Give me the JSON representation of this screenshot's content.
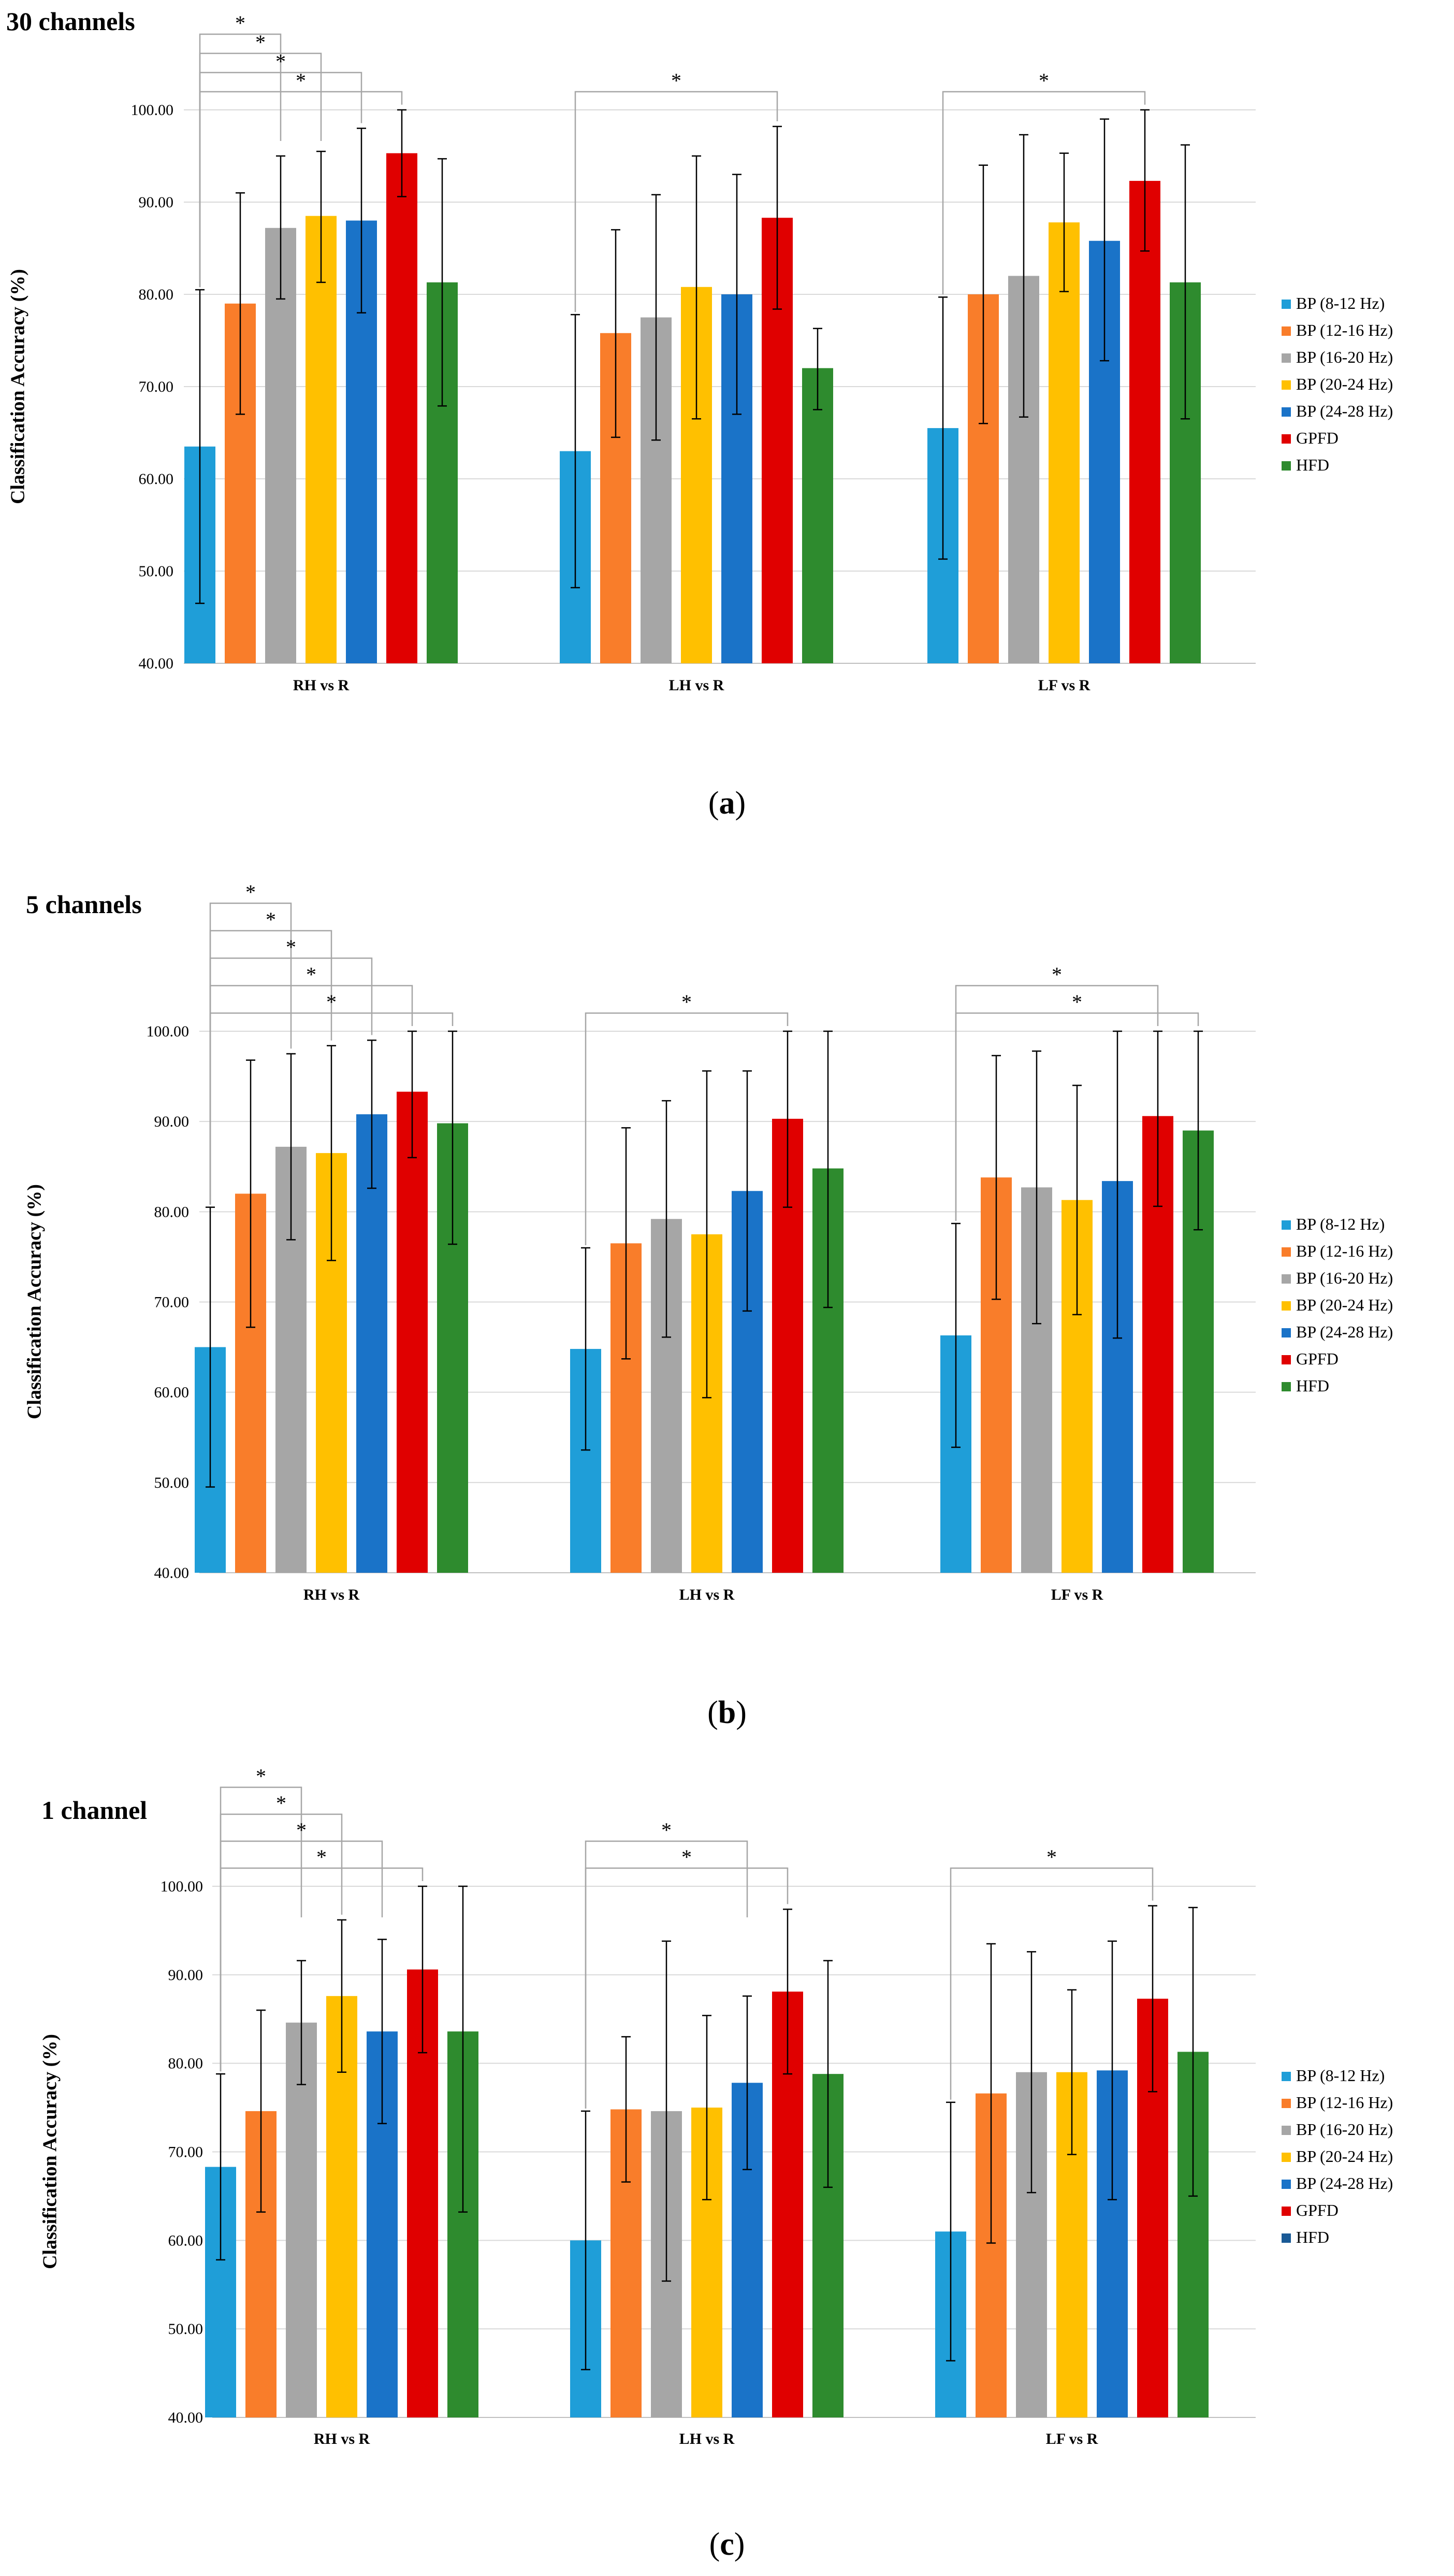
{
  "chart_data": [
    {
      "type": "bar",
      "title": "30 channels",
      "caption_letter": "a",
      "ylabel": "Classification Accuracy (%)",
      "xlabel": "",
      "ylim": [
        40,
        100
      ],
      "yticks": [
        "40.00",
        "50.00",
        "60.00",
        "70.00",
        "80.00",
        "90.00",
        "100.00"
      ],
      "categories": [
        "RH vs R",
        "LH vs R",
        "LF vs R"
      ],
      "legend_position": "right",
      "grid": true,
      "series": [
        {
          "name": "BP (8-12 Hz)",
          "color": "#1f9ed8",
          "values": [
            63.5,
            63.0,
            65.5
          ],
          "err_high": [
            80.5,
            77.8,
            79.7
          ],
          "err_low": [
            46.5,
            48.2,
            51.3
          ]
        },
        {
          "name": "BP (12-16 Hz)",
          "color": "#f97d2a",
          "values": [
            79.0,
            75.8,
            80.0
          ],
          "err_high": [
            91.0,
            87.0,
            94.0
          ],
          "err_low": [
            67.0,
            64.5,
            66.0
          ]
        },
        {
          "name": "BP (16-20 Hz)",
          "color": "#a6a6a6",
          "values": [
            87.2,
            77.5,
            82.0
          ],
          "err_high": [
            95.0,
            90.8,
            97.3
          ],
          "err_low": [
            79.5,
            64.2,
            66.7
          ]
        },
        {
          "name": "BP (20-24 Hz)",
          "color": "#ffc000",
          "values": [
            88.5,
            80.8,
            87.8
          ],
          "err_high": [
            95.5,
            95.0,
            95.3
          ],
          "err_low": [
            81.3,
            66.5,
            80.3
          ]
        },
        {
          "name": "BP (24-28 Hz)",
          "color": "#1a73c8",
          "values": [
            88.0,
            80.0,
            85.8
          ],
          "err_high": [
            98.0,
            93.0,
            99.0
          ],
          "err_low": [
            78.0,
            67.0,
            72.8
          ]
        },
        {
          "name": "GPFD",
          "color": "#e00000",
          "values": [
            95.3,
            88.3,
            92.3
          ],
          "err_high": [
            100.0,
            98.2,
            100.0
          ],
          "err_low": [
            90.6,
            78.4,
            84.7
          ]
        },
        {
          "name": "HFD",
          "color": "#2e8b2e",
          "values": [
            81.3,
            72.0,
            81.3
          ],
          "err_high": [
            94.7,
            76.3,
            96.2
          ],
          "err_low": [
            67.9,
            67.5,
            66.5
          ]
        }
      ],
      "significance": [
        {
          "category": 0,
          "to_series": 2,
          "label": "*"
        },
        {
          "category": 0,
          "to_series": 3,
          "label": "*"
        },
        {
          "category": 0,
          "to_series": 4,
          "label": "*"
        },
        {
          "category": 0,
          "to_series": 5,
          "label": "*"
        },
        {
          "category": 1,
          "to_series": 5,
          "label": "*"
        },
        {
          "category": 2,
          "to_series": 5,
          "label": "*"
        }
      ]
    },
    {
      "type": "bar",
      "title": "5 channels",
      "caption_letter": "b",
      "ylabel": "Classification Accuracy (%)",
      "xlabel": "",
      "ylim": [
        40,
        100
      ],
      "yticks": [
        "40.00",
        "50.00",
        "60.00",
        "70.00",
        "80.00",
        "90.00",
        "100.00"
      ],
      "categories": [
        "RH vs R",
        "LH vs R",
        "LF vs R"
      ],
      "legend_position": "right",
      "grid": true,
      "series": [
        {
          "name": "BP (8-12 Hz)",
          "color": "#1f9ed8",
          "values": [
            65.0,
            64.8,
            66.3
          ],
          "err_high": [
            80.5,
            76.0,
            78.7
          ],
          "err_low": [
            49.5,
            53.6,
            53.9
          ]
        },
        {
          "name": "BP (12-16 Hz)",
          "color": "#f97d2a",
          "values": [
            82.0,
            76.5,
            83.8
          ],
          "err_high": [
            96.8,
            89.3,
            97.3
          ],
          "err_low": [
            67.2,
            63.7,
            70.3
          ]
        },
        {
          "name": "BP (16-20 Hz)",
          "color": "#a6a6a6",
          "values": [
            87.2,
            79.2,
            82.7
          ],
          "err_high": [
            97.5,
            92.3,
            97.8
          ],
          "err_low": [
            76.9,
            66.1,
            67.6
          ]
        },
        {
          "name": "BP (20-24 Hz)",
          "color": "#ffc000",
          "values": [
            86.5,
            77.5,
            81.3
          ],
          "err_high": [
            98.4,
            95.6,
            94.0
          ],
          "err_low": [
            74.6,
            59.4,
            68.6
          ]
        },
        {
          "name": "BP (24-28 Hz)",
          "color": "#1a73c8",
          "values": [
            90.8,
            82.3,
            83.4
          ],
          "err_high": [
            99.0,
            95.6,
            100.0
          ],
          "err_low": [
            82.6,
            69.0,
            66.0
          ]
        },
        {
          "name": "GPFD",
          "color": "#e00000",
          "values": [
            93.3,
            90.3,
            90.6
          ],
          "err_high": [
            100.0,
            100.0,
            100.0
          ],
          "err_low": [
            86.0,
            80.5,
            80.6
          ]
        },
        {
          "name": "HFD",
          "color": "#2e8b2e",
          "values": [
            89.8,
            84.8,
            89.0
          ],
          "err_high": [
            100.0,
            100.0,
            100.0
          ],
          "err_low": [
            76.4,
            69.4,
            78.0
          ]
        }
      ],
      "significance": [
        {
          "category": 0,
          "to_series": 2,
          "label": "*"
        },
        {
          "category": 0,
          "to_series": 3,
          "label": "*"
        },
        {
          "category": 0,
          "to_series": 4,
          "label": "*"
        },
        {
          "category": 0,
          "to_series": 5,
          "label": "*"
        },
        {
          "category": 0,
          "to_series": 6,
          "label": "*"
        },
        {
          "category": 1,
          "to_series": 5,
          "label": "*"
        },
        {
          "category": 2,
          "to_series": 5,
          "label": "*"
        },
        {
          "category": 2,
          "to_series": 6,
          "label": "*"
        }
      ]
    },
    {
      "type": "bar",
      "title": "1 channel",
      "caption_letter": "c",
      "ylabel": "Classification Accuracy (%)",
      "xlabel": "",
      "ylim": [
        40,
        100
      ],
      "yticks": [
        "40.00",
        "50.00",
        "60.00",
        "70.00",
        "80.00",
        "90.00",
        "100.00"
      ],
      "categories": [
        "RH vs R",
        "LH vs R",
        "LF vs R"
      ],
      "legend_position": "right",
      "grid": true,
      "series": [
        {
          "name": "BP (8-12 Hz)",
          "color": "#1f9ed8",
          "values": [
            68.3,
            60.0,
            61.0
          ],
          "err_high": [
            78.8,
            74.6,
            75.6
          ],
          "err_low": [
            57.8,
            45.4,
            46.4
          ]
        },
        {
          "name": "BP (12-16 Hz)",
          "color": "#f97d2a",
          "values": [
            74.6,
            74.8,
            76.6
          ],
          "err_high": [
            86.0,
            83.0,
            93.5
          ],
          "err_low": [
            63.2,
            66.6,
            59.7
          ]
        },
        {
          "name": "BP (16-20 Hz)",
          "color": "#a6a6a6",
          "values": [
            84.6,
            74.6,
            79.0
          ],
          "err_high": [
            91.6,
            93.8,
            92.6
          ],
          "err_low": [
            77.6,
            55.4,
            65.4
          ]
        },
        {
          "name": "BP (20-24 Hz)",
          "color": "#ffc000",
          "values": [
            87.6,
            75.0,
            79.0
          ],
          "err_high": [
            96.2,
            85.4,
            88.3
          ],
          "err_low": [
            79.0,
            64.6,
            69.7
          ]
        },
        {
          "name": "BP (24-28 Hz)",
          "color": "#1a73c8",
          "values": [
            83.6,
            77.8,
            79.2
          ],
          "err_high": [
            94.0,
            87.6,
            93.8
          ],
          "err_low": [
            73.2,
            68.0,
            64.6
          ]
        },
        {
          "name": "GPFD",
          "color": "#e00000",
          "values": [
            90.6,
            88.1,
            87.3
          ],
          "err_high": [
            100.0,
            97.4,
            97.8
          ],
          "err_low": [
            81.2,
            78.8,
            76.8
          ]
        },
        {
          "name": "HFD",
          "color": "#2e8b2e",
          "values": [
            83.6,
            78.8,
            81.3
          ],
          "err_high": [
            100.0,
            91.6,
            97.6
          ],
          "err_low": [
            63.2,
            66.0,
            65.0
          ]
        }
      ],
      "legend_overrides": [
        {
          "series": 6,
          "color": "#1a5a96"
        }
      ],
      "significance": [
        {
          "category": 0,
          "to_series": 2,
          "label": "*"
        },
        {
          "category": 0,
          "to_series": 3,
          "label": "*"
        },
        {
          "category": 0,
          "to_series": 4,
          "label": "*"
        },
        {
          "category": 0,
          "to_series": 5,
          "label": "*"
        },
        {
          "category": 1,
          "to_series": 4,
          "label": "*"
        },
        {
          "category": 1,
          "to_series": 5,
          "label": "*"
        },
        {
          "category": 2,
          "to_series": 5,
          "label": "*"
        }
      ]
    }
  ]
}
